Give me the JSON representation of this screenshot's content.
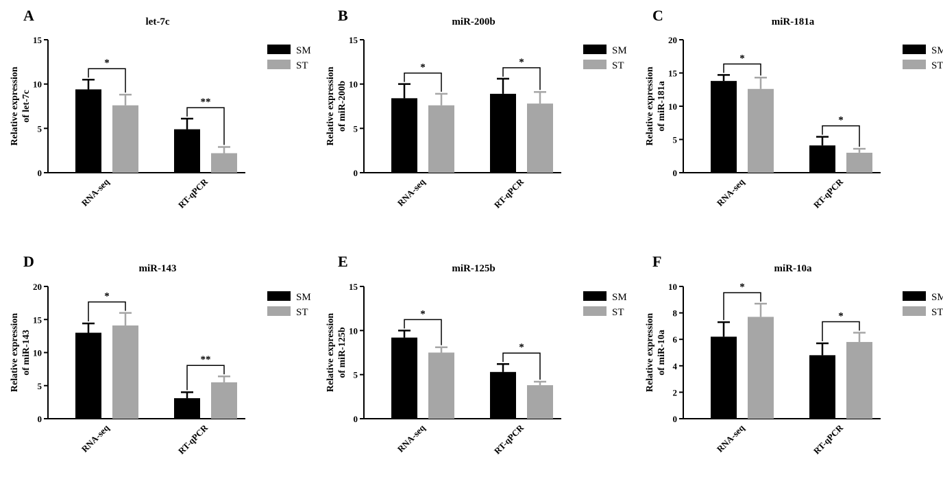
{
  "legend": {
    "series": [
      {
        "name": "SM",
        "color": "#000000"
      },
      {
        "name": "ST",
        "color": "#a6a6a6"
      }
    ]
  },
  "chart_data": [
    {
      "panel": "A",
      "type": "bar",
      "title": "let-7c",
      "ylabel": [
        "Relative expression",
        "of let-7c"
      ],
      "categories": [
        "RNA-seq",
        "RT-qPCR"
      ],
      "ylim": [
        0,
        15
      ],
      "yticks": [
        0,
        5,
        10,
        15
      ],
      "series": [
        {
          "name": "SM",
          "values": [
            9.4,
            4.9
          ],
          "errors": [
            1.1,
            1.2
          ]
        },
        {
          "name": "ST",
          "values": [
            7.6,
            2.2
          ],
          "errors": [
            1.2,
            0.7
          ]
        }
      ],
      "significance": [
        "*",
        "**"
      ]
    },
    {
      "panel": "B",
      "type": "bar",
      "title": "miR-200b",
      "ylabel": [
        "Relative expression",
        "of miR-200b"
      ],
      "categories": [
        "RNA-seq",
        "RT-qPCR"
      ],
      "ylim": [
        0,
        15
      ],
      "yticks": [
        0,
        5,
        10,
        15
      ],
      "series": [
        {
          "name": "SM",
          "values": [
            8.4,
            8.9
          ],
          "errors": [
            1.6,
            1.7
          ]
        },
        {
          "name": "ST",
          "values": [
            7.6,
            7.8
          ],
          "errors": [
            1.3,
            1.3
          ]
        }
      ],
      "significance": [
        "*",
        "*"
      ]
    },
    {
      "panel": "C",
      "type": "bar",
      "title": "miR-181a",
      "ylabel": [
        "Relative expression",
        "of miR-181a"
      ],
      "categories": [
        "RNA-seq",
        "RT-qPCR"
      ],
      "ylim": [
        0,
        20
      ],
      "yticks": [
        0,
        5,
        10,
        15,
        20
      ],
      "series": [
        {
          "name": "SM",
          "values": [
            13.8,
            4.1
          ],
          "errors": [
            0.9,
            1.3
          ]
        },
        {
          "name": "ST",
          "values": [
            12.6,
            3.0
          ],
          "errors": [
            1.7,
            0.6
          ]
        }
      ],
      "significance": [
        "*",
        "*"
      ]
    },
    {
      "panel": "D",
      "type": "bar",
      "title": "miR-143",
      "ylabel": [
        "Relative expression",
        "of miR-143"
      ],
      "categories": [
        "RNA-seq",
        "RT-qPCR"
      ],
      "ylim": [
        0,
        20
      ],
      "yticks": [
        0,
        5,
        10,
        15,
        20
      ],
      "series": [
        {
          "name": "SM",
          "values": [
            13.0,
            3.1
          ],
          "errors": [
            1.4,
            0.9
          ]
        },
        {
          "name": "ST",
          "values": [
            14.1,
            5.5
          ],
          "errors": [
            1.9,
            0.9
          ]
        }
      ],
      "significance": [
        "*",
        "**"
      ]
    },
    {
      "panel": "E",
      "type": "bar",
      "title": "miR-125b",
      "ylabel": [
        "Relative expression",
        "of miR-125b"
      ],
      "categories": [
        "RNA-seq",
        "RT-qPCR"
      ],
      "ylim": [
        0,
        15
      ],
      "yticks": [
        0,
        5,
        10,
        15
      ],
      "series": [
        {
          "name": "SM",
          "values": [
            9.2,
            5.3
          ],
          "errors": [
            0.8,
            0.9
          ]
        },
        {
          "name": "ST",
          "values": [
            7.5,
            3.8
          ],
          "errors": [
            0.6,
            0.4
          ]
        }
      ],
      "significance": [
        "*",
        "*"
      ]
    },
    {
      "panel": "F",
      "type": "bar",
      "title": "miR-10a",
      "ylabel": [
        "Relative expression",
        "of miR-10a"
      ],
      "categories": [
        "RNA-seq",
        "RT-qPCR"
      ],
      "ylim": [
        0,
        10
      ],
      "yticks": [
        0,
        2,
        4,
        6,
        8,
        10
      ],
      "series": [
        {
          "name": "SM",
          "values": [
            6.2,
            4.8
          ],
          "errors": [
            1.1,
            0.9
          ]
        },
        {
          "name": "ST",
          "values": [
            7.7,
            5.8
          ],
          "errors": [
            1.0,
            0.7
          ]
        }
      ],
      "significance": [
        "*",
        "*"
      ]
    }
  ]
}
